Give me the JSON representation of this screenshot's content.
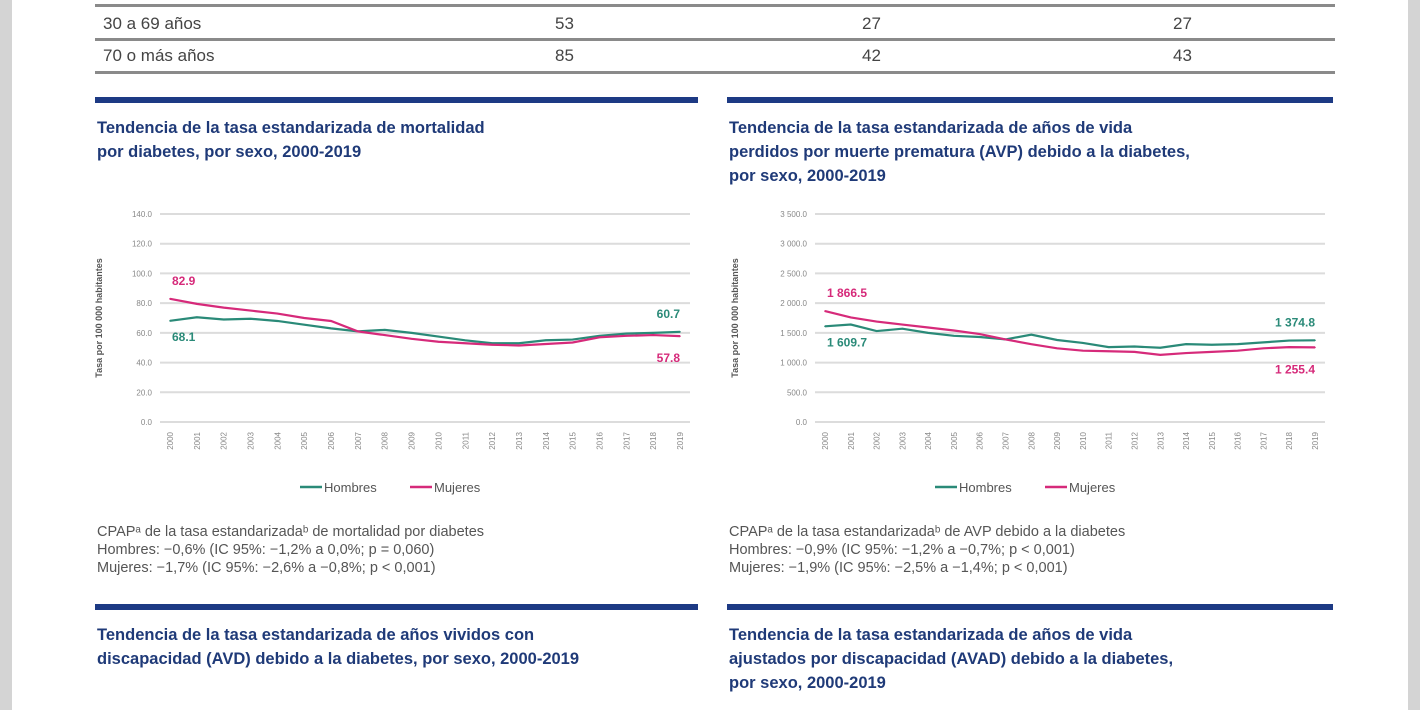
{
  "table": {
    "rows": [
      {
        "label": "30 a 69 años",
        "values": [
          "53",
          "27",
          "27"
        ]
      },
      {
        "label": "70 o más años",
        "values": [
          "85",
          "42",
          "43"
        ]
      }
    ]
  },
  "panels": [
    {
      "title": [
        "Tendencia de la tasa estandarizada de mortalidad",
        "por diabetes, por sexo, 2000-2019"
      ],
      "notes": [
        "CPAPᵃ de la tasa estandarizadaᵇ de mortalidad por diabetes",
        "Hombres: −0,6% (IC 95%: −1,2% a 0,0%; p = 0,060)",
        "Mujeres:   −1,7% (IC 95%: −2,6% a −0,8%; p < 0,001)"
      ]
    },
    {
      "title": [
        "Tendencia de la tasa estandarizada de años de vida",
        "perdidos por muerte prematura (AVP) debido a la diabetes,",
        "por sexo, 2000-2019"
      ],
      "notes": [
        "CPAPᵃ de la tasa estandarizadaᵇ de AVP debido a la diabetes",
        "Hombres: −0,9% (IC 95%: −1,2% a −0,7%; p < 0,001)",
        "Mujeres:   −1,9% (IC 95%: −2,5% a  −1,4%; p < 0,001)"
      ]
    },
    {
      "title": [
        "Tendencia de la tasa estandarizada de años vividos con",
        "discapacidad (AVD) debido a la diabetes, por sexo, 2000-2019"
      ]
    },
    {
      "title": [
        "Tendencia de la tasa estandarizada de años de vida",
        "ajustados por discapacidad (AVAD) debido a la diabetes,",
        "por sexo, 2000-2019"
      ]
    }
  ],
  "chart_data": [
    {
      "type": "line",
      "ylabel": "Tasa por 100 000 habitantes",
      "ylim": [
        0,
        140
      ],
      "yticks": [
        "0.0",
        "20.0",
        "40.0",
        "60.0",
        "80.0",
        "100.0",
        "120.0",
        "140.0"
      ],
      "x": [
        "2000",
        "2001",
        "2002",
        "2003",
        "2004",
        "2005",
        "2006",
        "2007",
        "2008",
        "2009",
        "2010",
        "2011",
        "2012",
        "2013",
        "2014",
        "2015",
        "2016",
        "2017",
        "2018",
        "2019"
      ],
      "legend": "bottom",
      "grid": true,
      "series": [
        {
          "name": "Hombres",
          "color": "#2a8a78",
          "values": [
            68.1,
            70.5,
            69,
            69.5,
            68,
            65.5,
            63,
            61,
            62,
            60,
            57.5,
            55,
            53,
            53,
            55,
            55.5,
            58,
            59.5,
            60,
            60.7
          ],
          "start_label": "68.1",
          "end_label": "60.7"
        },
        {
          "name": "Mujeres",
          "color": "#d62a7a",
          "values": [
            82.9,
            79.5,
            77,
            75,
            73,
            70,
            68,
            61,
            58.5,
            56,
            54,
            53,
            52,
            51.5,
            52.5,
            53.5,
            57,
            58,
            58.5,
            57.8
          ],
          "start_label": "82.9",
          "end_label": "57.8"
        }
      ]
    },
    {
      "type": "line",
      "ylabel": "Tasa por 100 000 habitantes",
      "ylim": [
        0,
        3500
      ],
      "yticks": [
        "0.0",
        "500.0",
        "1 000.0",
        "1 500.0",
        "2 000.0",
        "2 500.0",
        "3 000.0",
        "3 500.0"
      ],
      "x": [
        "2000",
        "2001",
        "2002",
        "2003",
        "2004",
        "2005",
        "2006",
        "2007",
        "2008",
        "2009",
        "2010",
        "2011",
        "2012",
        "2013",
        "2014",
        "2015",
        "2016",
        "2017",
        "2018",
        "2019"
      ],
      "legend": "bottom",
      "grid": true,
      "series": [
        {
          "name": "Hombres",
          "color": "#2a8a78",
          "values": [
            1609.7,
            1640,
            1530,
            1570,
            1500,
            1450,
            1430,
            1390,
            1470,
            1380,
            1330,
            1260,
            1270,
            1250,
            1310,
            1300,
            1310,
            1340,
            1370,
            1374.8
          ],
          "start_label": "1 609.7",
          "end_label": "1 374.8"
        },
        {
          "name": "Mujeres",
          "color": "#d62a7a",
          "values": [
            1866.5,
            1760,
            1690,
            1640,
            1590,
            1540,
            1480,
            1390,
            1310,
            1240,
            1200,
            1190,
            1180,
            1130,
            1160,
            1180,
            1200,
            1240,
            1260,
            1255.4
          ],
          "start_label": "1 866.5",
          "end_label": "1 255.4"
        }
      ]
    }
  ]
}
